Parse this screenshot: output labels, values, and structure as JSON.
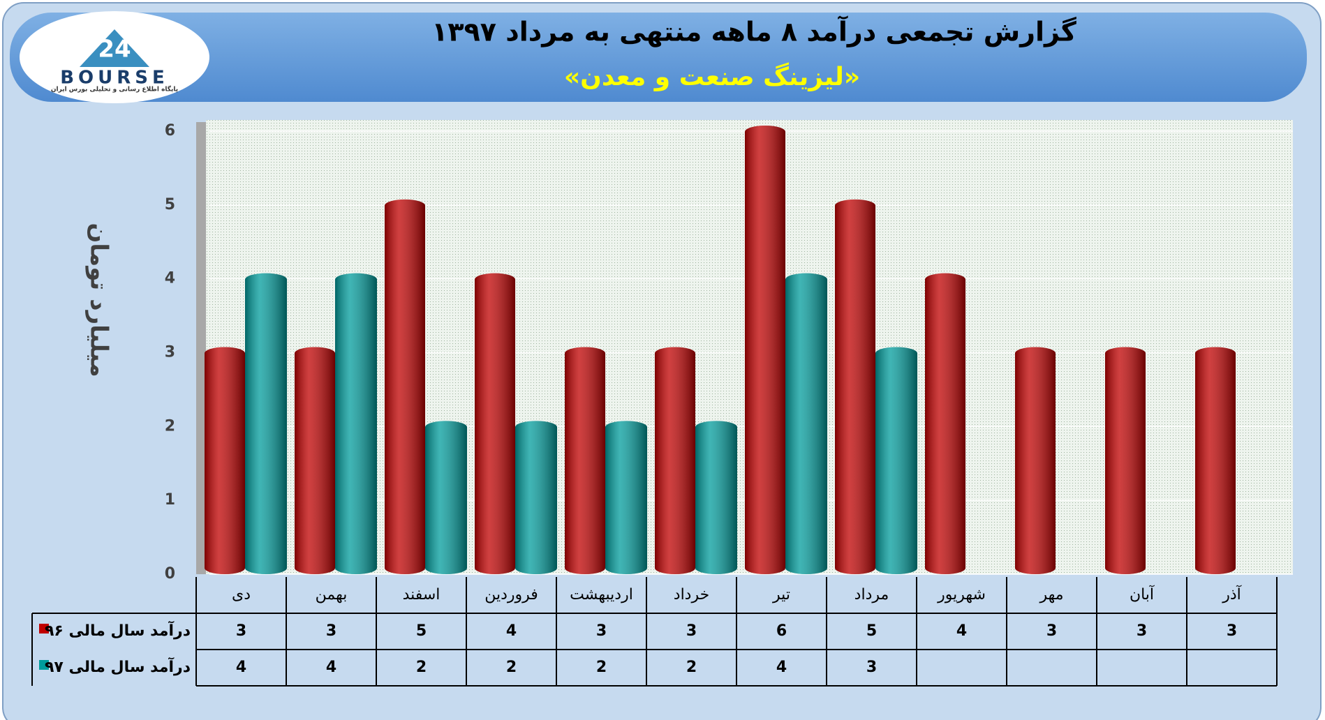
{
  "logo": {
    "mark": "24",
    "name": "BOURSE",
    "tagline": "پایگاه اطلاع رسانی و تحلیلی بورس ایران"
  },
  "chart_data": {
    "type": "bar",
    "title": "گزارش تجمعی درآمد ۸ ماهه منتهی به مرداد ۱۳۹۷",
    "subtitle": "«لیزینگ صنعت و معدن»",
    "y_label": "میلیارد تومان",
    "categories": [
      "دی",
      "بهمن",
      "اسفند",
      "فروردین",
      "اردیبهشت",
      "خرداد",
      "تیر",
      "مرداد",
      "شهریور",
      "مهر",
      "آبان",
      "آذر"
    ],
    "series": [
      {
        "name": "درآمد سال مالی ۹۶",
        "color": "#c00000",
        "values": [
          3,
          3,
          5,
          4,
          3,
          3,
          6,
          5,
          4,
          3,
          3,
          3
        ]
      },
      {
        "name": "درآمد سال مالی ۹۷",
        "color": "#009c9c",
        "values": [
          4,
          4,
          2,
          2,
          2,
          2,
          4,
          3,
          null,
          null,
          null,
          null
        ]
      }
    ],
    "ylim": [
      0,
      6
    ],
    "yticks": [
      0,
      1,
      2,
      3,
      4,
      5,
      6
    ],
    "grid": true,
    "data_table": true
  }
}
